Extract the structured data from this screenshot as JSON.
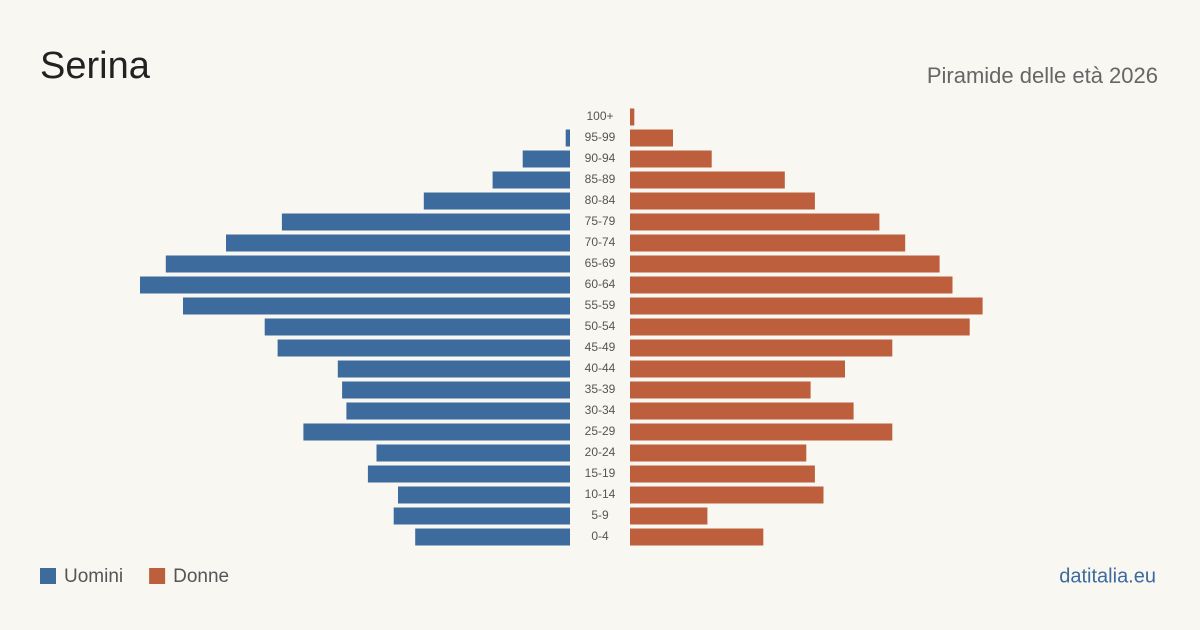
{
  "chart_data": {
    "type": "pyramid",
    "title": "Serina",
    "subtitle": "Piramide delle età 2026",
    "source": "datitalia.eu",
    "categories": [
      "100+",
      "95-99",
      "90-94",
      "85-89",
      "80-84",
      "75-79",
      "70-74",
      "65-69",
      "60-64",
      "55-59",
      "50-54",
      "45-49",
      "40-44",
      "35-39",
      "30-34",
      "25-29",
      "20-24",
      "15-19",
      "10-14",
      "5-9",
      "0-4"
    ],
    "series": [
      {
        "name": "Uomini",
        "color": "#3d6b9e",
        "values": [
          0,
          1,
          11,
          18,
          34,
          67,
          80,
          94,
          100,
          90,
          71,
          68,
          54,
          53,
          52,
          62,
          45,
          47,
          40,
          41,
          36
        ]
      },
      {
        "name": "Donne",
        "color": "#bd5f3d",
        "values": [
          1,
          10,
          19,
          36,
          43,
          58,
          64,
          72,
          75,
          82,
          79,
          61,
          50,
          42,
          52,
          61,
          41,
          43,
          45,
          18,
          31
        ]
      }
    ],
    "legend": "bottom-left"
  }
}
